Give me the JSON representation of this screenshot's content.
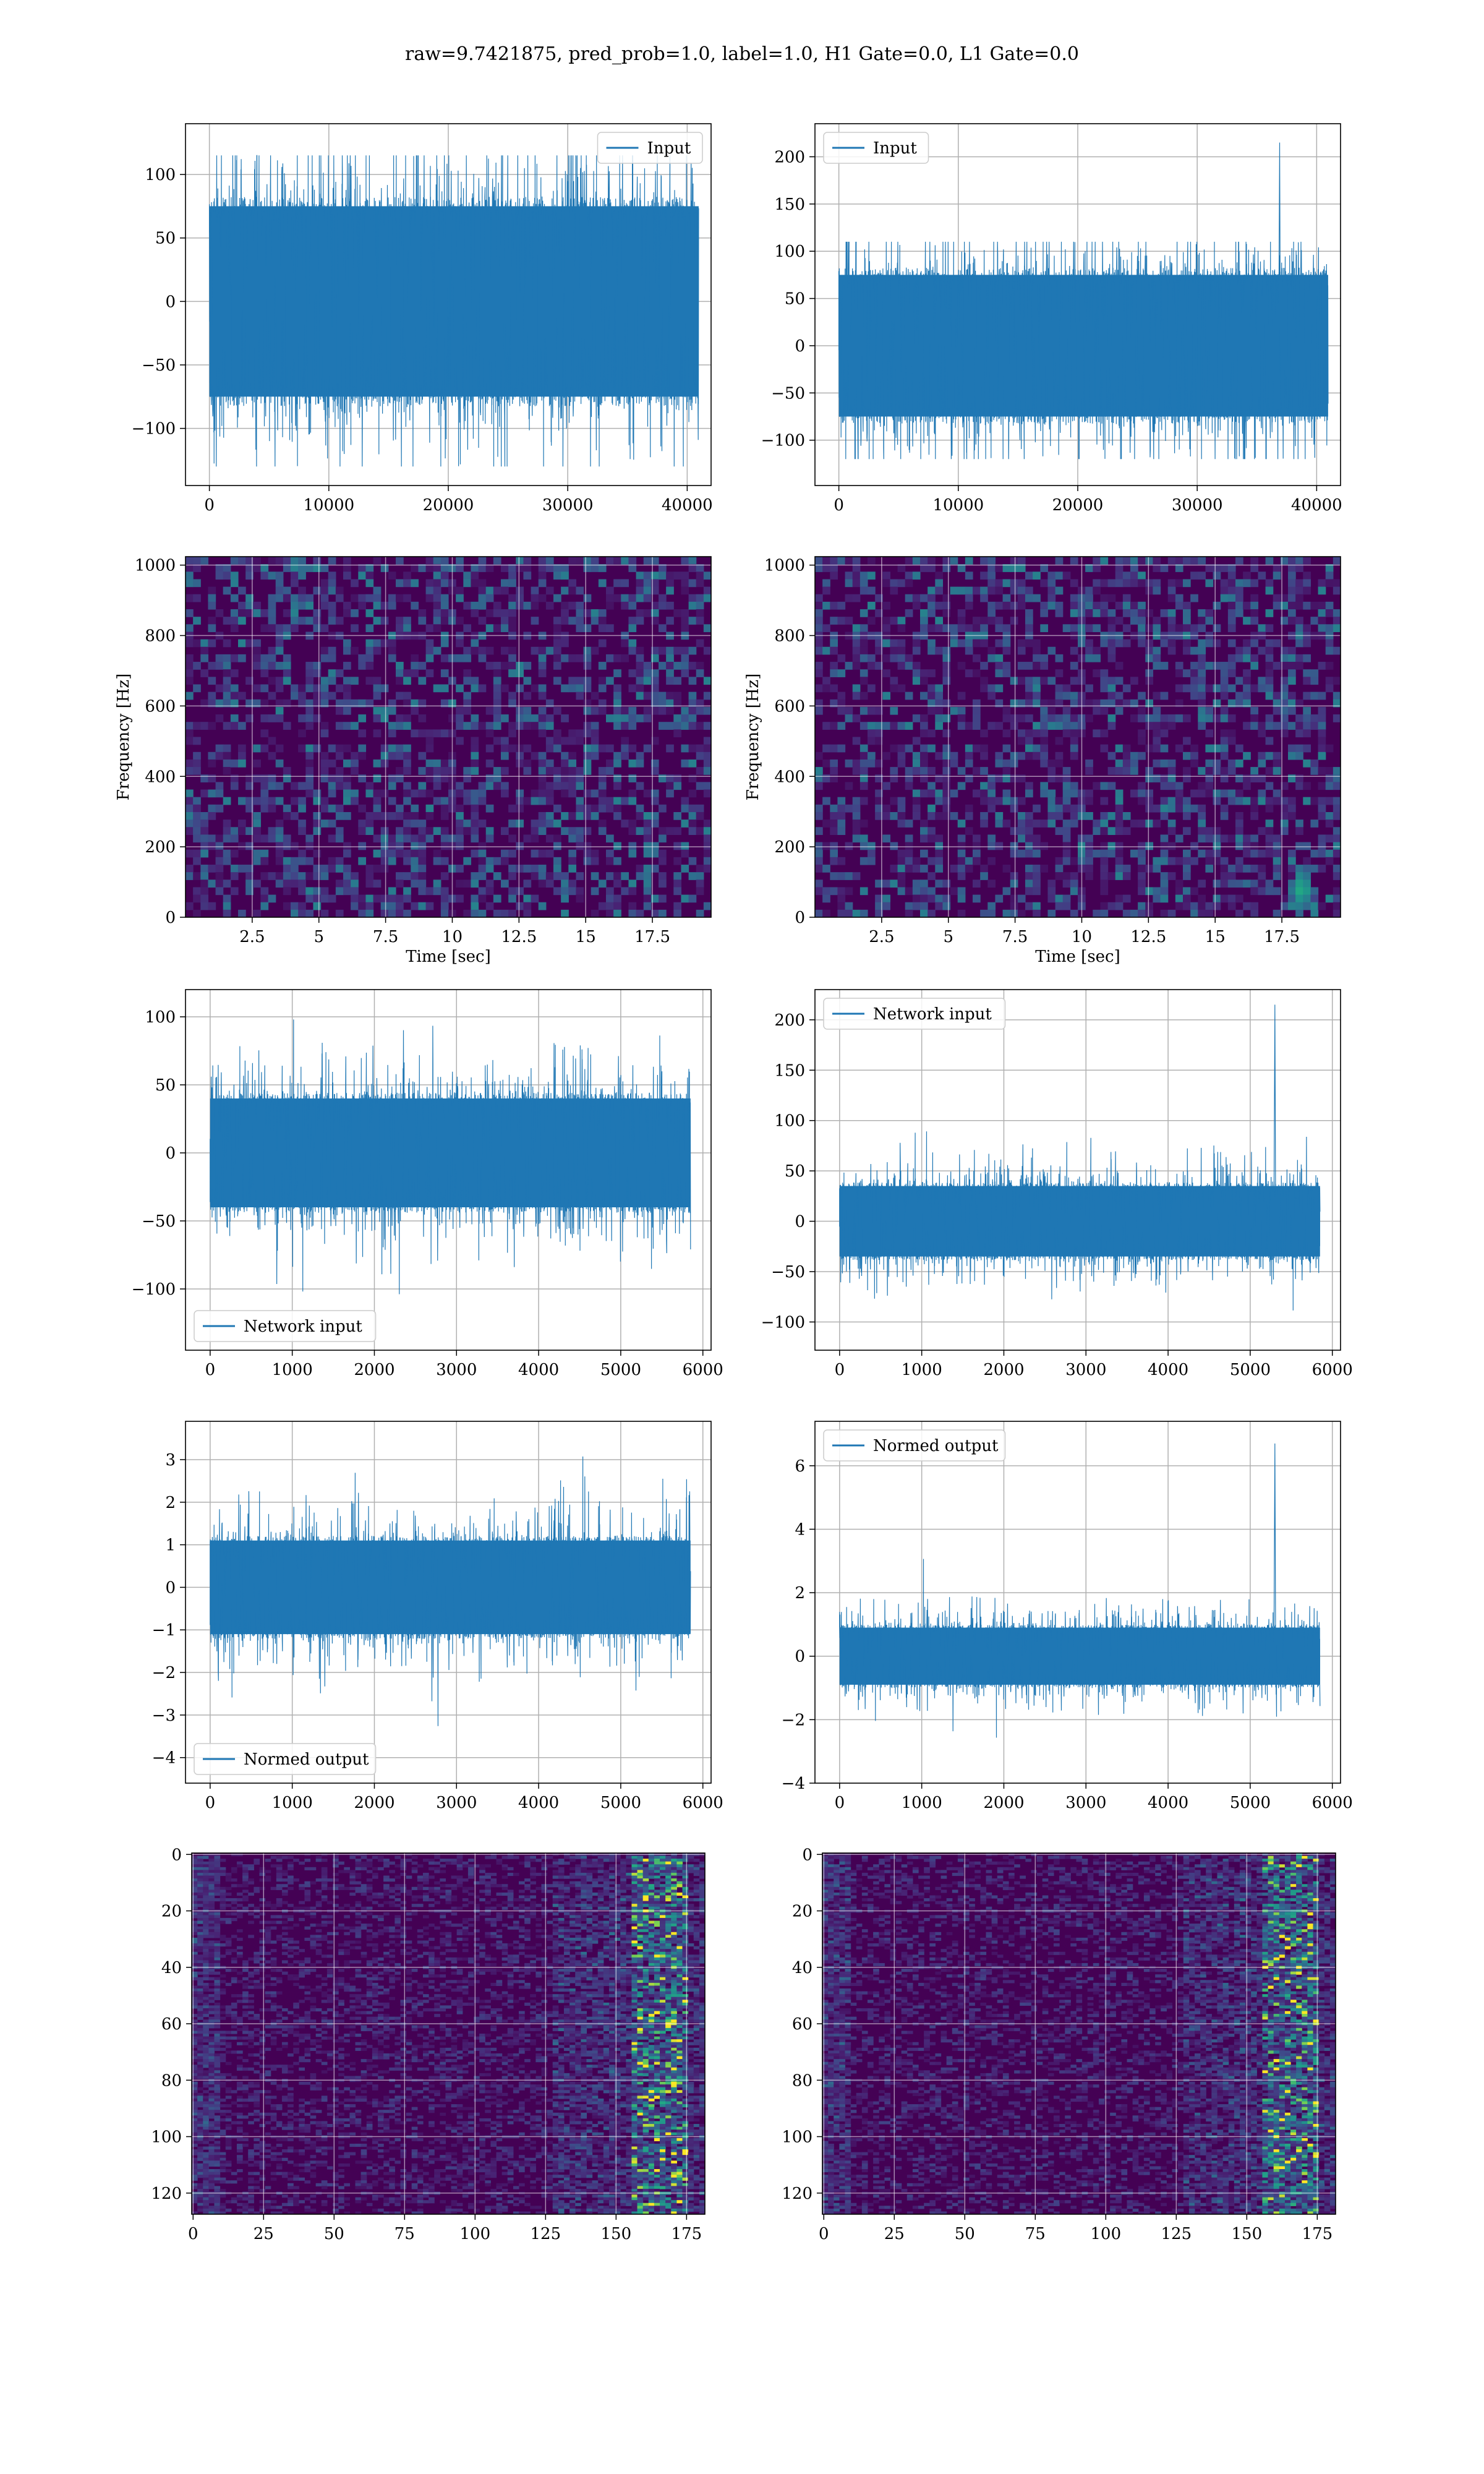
{
  "figure": {
    "title": "raw=9.7421875, pred_prob=1.0, label=1.0, H1 Gate=0.0, L1 Gate=0.0"
  },
  "colors": {
    "line": "#1f77b4",
    "grid": "#b0b0b0",
    "viridis_dark": "#440154",
    "viridis_mid": "#21918c",
    "viridis_bright": "#fde725"
  },
  "chart_data": [
    {
      "id": "input-h1",
      "type": "line",
      "legend": [
        "Input"
      ],
      "legend_loc": "upper right",
      "xlim": [
        -2000,
        42000
      ],
      "ylim": [
        -145,
        140
      ],
      "xticks": [
        0,
        10000,
        20000,
        30000,
        40000
      ],
      "yticks": [
        -100,
        -50,
        0,
        50,
        100
      ],
      "x_range": [
        0,
        40960
      ],
      "envelope": [
        -75,
        75
      ],
      "extreme_range": [
        -130,
        115
      ],
      "spikes": [],
      "grid": true
    },
    {
      "id": "input-l1",
      "type": "line",
      "legend": [
        "Input"
      ],
      "legend_loc": "upper left",
      "xlim": [
        -2000,
        42000
      ],
      "ylim": [
        -148,
        235
      ],
      "xticks": [
        0,
        10000,
        20000,
        30000,
        40000
      ],
      "yticks": [
        -100,
        -50,
        0,
        50,
        100,
        150,
        200
      ],
      "x_range": [
        0,
        40960
      ],
      "envelope": [
        -75,
        75
      ],
      "extreme_range": [
        -120,
        110
      ],
      "spikes": [
        {
          "x": 36900,
          "y": 215
        }
      ],
      "grid": true
    },
    {
      "id": "spectrogram-h1",
      "type": "heatmap",
      "xlabel": "Time [sec]",
      "ylabel": "Frequency [Hz]",
      "xlim": [
        0,
        19.7
      ],
      "ylim": [
        0,
        1024
      ],
      "xticks": [
        2.5,
        5.0,
        7.5,
        10.0,
        12.5,
        15.0,
        17.5
      ],
      "yticks": [
        0,
        200,
        400,
        600,
        800,
        1000
      ],
      "hotspots": [],
      "grid": true
    },
    {
      "id": "spectrogram-l1",
      "type": "heatmap",
      "xlabel": "Time [sec]",
      "ylabel": "Frequency [Hz]",
      "xlim": [
        0,
        19.7
      ],
      "ylim": [
        0,
        1024
      ],
      "xticks": [
        2.5,
        5.0,
        7.5,
        10.0,
        12.5,
        15.0,
        17.5
      ],
      "yticks": [
        0,
        200,
        400,
        600,
        800,
        1000
      ],
      "hotspots": [
        {
          "x": 18.1,
          "y": 90
        }
      ],
      "grid": true
    },
    {
      "id": "network-input-h1",
      "type": "line",
      "legend": [
        "Network input"
      ],
      "legend_loc": "lower left",
      "xlim": [
        -300,
        6100
      ],
      "ylim": [
        -145,
        120
      ],
      "xticks": [
        0,
        1000,
        2000,
        3000,
        4000,
        5000,
        6000
      ],
      "yticks": [
        -100,
        -50,
        0,
        50,
        100
      ],
      "x_range": [
        0,
        5850
      ],
      "envelope": [
        -40,
        40
      ],
      "extreme_range": [
        -130,
        110
      ],
      "spikes": [],
      "grid": true
    },
    {
      "id": "network-input-l1",
      "type": "line",
      "legend": [
        "Network input"
      ],
      "legend_loc": "upper left",
      "xlim": [
        -300,
        6100
      ],
      "ylim": [
        -128,
        230
      ],
      "xticks": [
        0,
        1000,
        2000,
        3000,
        4000,
        5000,
        6000
      ],
      "yticks": [
        -100,
        -50,
        0,
        50,
        100,
        150,
        200
      ],
      "x_range": [
        0,
        5850
      ],
      "envelope": [
        -35,
        35
      ],
      "extreme_range": [
        -110,
        100
      ],
      "spikes": [
        {
          "x": 5300,
          "y": 215
        }
      ],
      "grid": true
    },
    {
      "id": "normed-output-h1",
      "type": "line",
      "legend": [
        "Normed output"
      ],
      "legend_loc": "lower left",
      "xlim": [
        -300,
        6100
      ],
      "ylim": [
        -4.6,
        3.9
      ],
      "xticks": [
        0,
        1000,
        2000,
        3000,
        4000,
        5000,
        6000
      ],
      "yticks": [
        -4,
        -3,
        -2,
        -1,
        0,
        1,
        2,
        3
      ],
      "x_range": [
        0,
        5850
      ],
      "envelope": [
        -1.1,
        1.1
      ],
      "extreme_range": [
        -4.2,
        3.5
      ],
      "spikes": [],
      "grid": true
    },
    {
      "id": "normed-output-l1",
      "type": "line",
      "legend": [
        "Normed output"
      ],
      "legend_loc": "upper left",
      "xlim": [
        -300,
        6100
      ],
      "ylim": [
        -4.0,
        7.4
      ],
      "xticks": [
        0,
        1000,
        2000,
        3000,
        4000,
        5000,
        6000
      ],
      "yticks": [
        -4,
        -2,
        0,
        2,
        4,
        6
      ],
      "x_range": [
        0,
        5850
      ],
      "envelope": [
        -0.9,
        0.9
      ],
      "extreme_range": [
        -3.5,
        3.3
      ],
      "spikes": [
        {
          "x": 5300,
          "y": 6.7
        }
      ],
      "grid": true
    },
    {
      "id": "feature-map-h1",
      "type": "heatmap",
      "xlim": [
        -0.5,
        181.5
      ],
      "ylim_inverted": [
        127.5,
        -0.5
      ],
      "xticks": [
        0,
        25,
        50,
        75,
        100,
        125,
        150,
        175
      ],
      "yticks": [
        0,
        20,
        40,
        60,
        80,
        100,
        120
      ],
      "bright_band": [
        155,
        175
      ],
      "grid": true
    },
    {
      "id": "feature-map-l1",
      "type": "heatmap",
      "xlim": [
        -0.5,
        181.5
      ],
      "ylim_inverted": [
        127.5,
        -0.5
      ],
      "xticks": [
        0,
        25,
        50,
        75,
        100,
        125,
        150,
        175
      ],
      "yticks": [
        0,
        20,
        40,
        60,
        80,
        100,
        120
      ],
      "bright_band": [
        155,
        175
      ],
      "grid": true
    }
  ]
}
